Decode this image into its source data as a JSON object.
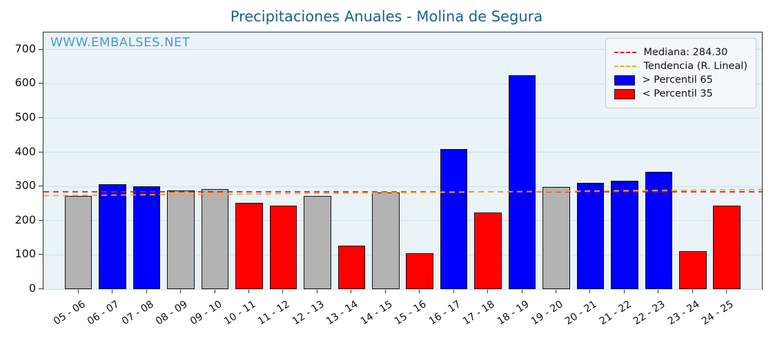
{
  "title": "Precipitaciones Anuales - Molina de Segura",
  "watermark": "WWW.EMBALSES.NET",
  "legend": {
    "median_label": "Mediana: 284.30",
    "trend_label": "Tendencia (R. Lineal)",
    "p65_label": "> Percentil 65",
    "p35_label": "< Percentil 35"
  },
  "colors": {
    "high": "#0000ff",
    "low": "#ff0000",
    "mid": "#b3b3b3",
    "median_line": "#e01414",
    "trend_line": "#ffa517",
    "title": "#1a6090",
    "watermark": "#4596c6"
  },
  "chart_data": {
    "type": "bar",
    "title": "Precipitaciones Anuales - Molina de Segura",
    "xlabel": "",
    "ylabel": "",
    "categories": [
      "05 - 06",
      "06 - 07",
      "07 - 08",
      "08 - 09",
      "09 - 10",
      "10 - 11",
      "11 - 12",
      "12 - 13",
      "13 - 14",
      "14 - 15",
      "15 - 16",
      "16 - 17",
      "17 - 18",
      "18 - 19",
      "19 - 20",
      "20 - 21",
      "21 - 22",
      "22 - 23",
      "23 - 24",
      "24 - 25"
    ],
    "values": [
      272,
      306,
      300,
      288,
      292,
      253,
      243,
      272,
      127,
      283,
      105,
      410,
      223,
      626,
      298,
      310,
      316,
      342,
      111,
      243
    ],
    "bar_classes": [
      "mid",
      "high",
      "high",
      "mid",
      "mid",
      "low",
      "low",
      "mid",
      "low",
      "mid",
      "low",
      "high",
      "low",
      "high",
      "mid",
      "high",
      "high",
      "high",
      "low",
      "low"
    ],
    "median": 284.3,
    "trend": {
      "start": 273,
      "end": 291
    },
    "ylim": [
      0,
      750
    ],
    "yticks": [
      0,
      100,
      200,
      300,
      400,
      500,
      600,
      700
    ],
    "grid": true,
    "legend_position": "upper right",
    "legend_entries": [
      {
        "label": "Mediana: 284.30",
        "style": "dashed-line",
        "color": "#e01414"
      },
      {
        "label": "Tendencia (R. Lineal)",
        "style": "dashed-line",
        "color": "#ffa517"
      },
      {
        "label": "> Percentil 65",
        "style": "patch",
        "color": "#0000ff"
      },
      {
        "label": "< Percentil 35",
        "style": "patch",
        "color": "#ff0000"
      }
    ]
  }
}
